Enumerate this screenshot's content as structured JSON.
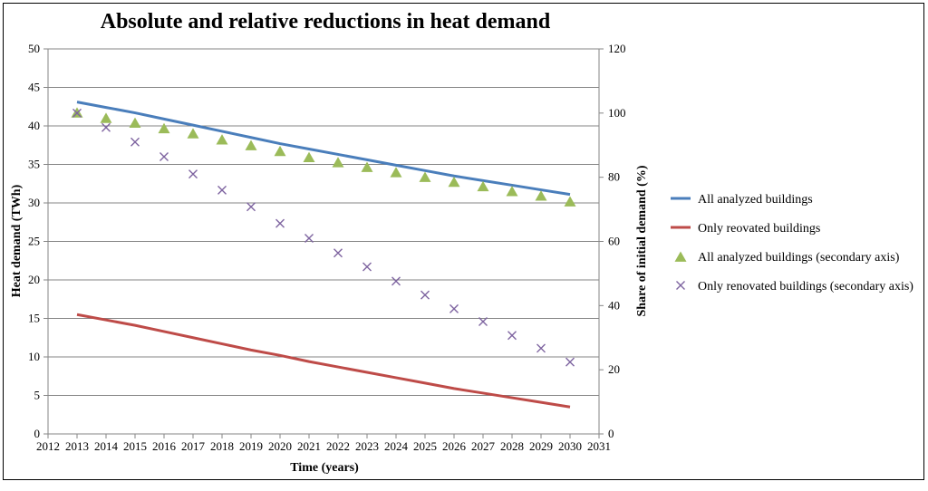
{
  "chart_data": {
    "type": "line",
    "title": "Absolute and relative reductions in heat demand",
    "xlabel": "Time (years)",
    "ylabel": "Heat demand (TWh)",
    "y2label": "Share of initial demand (%)",
    "xlim": [
      2012,
      2031
    ],
    "ylim": [
      0,
      50
    ],
    "y2lim": [
      0,
      120
    ],
    "x_ticks": [
      2012,
      2013,
      2014,
      2015,
      2016,
      2017,
      2018,
      2019,
      2020,
      2021,
      2022,
      2023,
      2024,
      2025,
      2026,
      2027,
      2028,
      2029,
      2030,
      2031
    ],
    "y_ticks": [
      0,
      5,
      10,
      15,
      20,
      25,
      30,
      35,
      40,
      45,
      50
    ],
    "y2_ticks": [
      0,
      20,
      40,
      60,
      80,
      100,
      120
    ],
    "legend_position": "right",
    "series": [
      {
        "name": "All analyzed buildings",
        "kind": "line",
        "axis": "primary",
        "color": "#4a7ebb",
        "x": [
          2013,
          2014,
          2015,
          2016,
          2017,
          2018,
          2019,
          2020,
          2021,
          2022,
          2023,
          2024,
          2025,
          2026,
          2027,
          2028,
          2029,
          2030
        ],
        "values": [
          43.1,
          42.4,
          41.7,
          40.9,
          40.1,
          39.3,
          38.5,
          37.7,
          37.0,
          36.3,
          35.6,
          34.9,
          34.2,
          33.5,
          32.9,
          32.3,
          31.7,
          31.1
        ]
      },
      {
        "name": "Only reovated buildings",
        "kind": "line",
        "axis": "primary",
        "color": "#be4b48",
        "x": [
          2013,
          2014,
          2015,
          2016,
          2017,
          2018,
          2019,
          2020,
          2021,
          2022,
          2023,
          2024,
          2025,
          2026,
          2027,
          2028,
          2029,
          2030
        ],
        "values": [
          15.5,
          14.8,
          14.1,
          13.3,
          12.5,
          11.7,
          10.9,
          10.2,
          9.4,
          8.7,
          8.0,
          7.3,
          6.6,
          5.9,
          5.3,
          4.7,
          4.1,
          3.5
        ]
      },
      {
        "name": "All analyzed buildings (secondary axis)",
        "kind": "triangle",
        "axis": "secondary",
        "color": "#9bbb59",
        "x": [
          2013,
          2014,
          2015,
          2016,
          2017,
          2018,
          2019,
          2020,
          2021,
          2022,
          2023,
          2024,
          2025,
          2026,
          2027,
          2028,
          2029,
          2030
        ],
        "values": [
          100,
          98.3,
          96.8,
          95.1,
          93.5,
          91.6,
          89.8,
          88.0,
          86.1,
          84.5,
          83.0,
          81.4,
          79.9,
          78.4,
          77.0,
          75.5,
          74.1,
          72.3
        ]
      },
      {
        "name": "Only renovated buildings (secondary axis)",
        "kind": "cross",
        "axis": "secondary",
        "color": "#7e64a0",
        "x": [
          2013,
          2014,
          2015,
          2016,
          2017,
          2018,
          2019,
          2020,
          2021,
          2022,
          2023,
          2024,
          2025,
          2026,
          2027,
          2028,
          2029,
          2030
        ],
        "values": [
          100,
          95.5,
          91.0,
          86.4,
          81.0,
          76.0,
          70.8,
          65.6,
          61.0,
          56.4,
          52.1,
          47.6,
          43.3,
          39.0,
          35.0,
          30.7,
          26.7,
          22.4
        ]
      }
    ]
  }
}
